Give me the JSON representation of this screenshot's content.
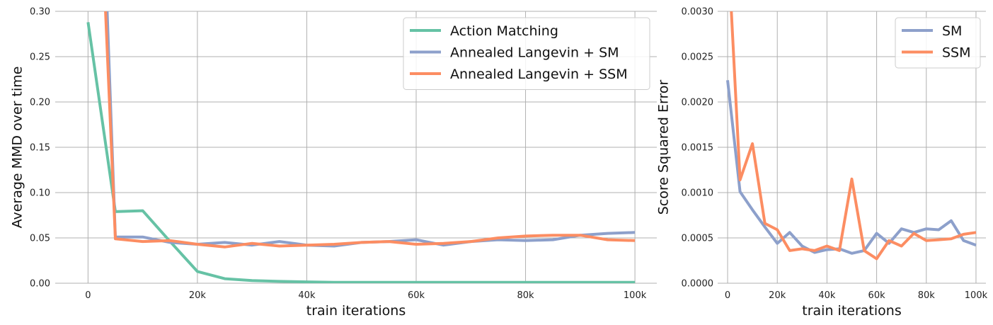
{
  "chart_data": [
    {
      "type": "line",
      "xlabel": "train iterations",
      "ylabel": "Average MMD over time",
      "xlim": [
        -6000,
        104000
      ],
      "ylim": [
        0,
        0.3
      ],
      "xticks": [
        0,
        20000,
        40000,
        60000,
        80000,
        100000
      ],
      "xtick_labels": [
        "0",
        "20k",
        "40k",
        "60k",
        "80k",
        "100k"
      ],
      "yticks": [
        0,
        0.05,
        0.1,
        0.15,
        0.2,
        0.25,
        0.3
      ],
      "ytick_labels": [
        "0.00",
        "0.05",
        "0.10",
        "0.15",
        "0.20",
        "0.25",
        "0.30"
      ],
      "grid": true,
      "legend_position": "top-right",
      "series": [
        {
          "name": "Action Matching",
          "color": "#66c2a5",
          "x": [
            0,
            5000,
            10000,
            15000,
            20000,
            25000,
            30000,
            35000,
            40000,
            45000,
            50000,
            55000,
            60000,
            65000,
            70000,
            75000,
            80000,
            85000,
            90000,
            95000,
            100000
          ],
          "y": [
            0.288,
            0.079,
            0.08,
            0.046,
            0.013,
            0.005,
            0.003,
            0.002,
            0.0015,
            0.001,
            0.001,
            0.001,
            0.001,
            0.001,
            0.001,
            0.001,
            0.001,
            0.001,
            0.001,
            0.001,
            0.001
          ]
        },
        {
          "name": "Annealed Langevin + SM",
          "color": "#8da0cb",
          "x": [
            3500,
            5000,
            10000,
            15000,
            20000,
            25000,
            30000,
            35000,
            40000,
            45000,
            50000,
            55000,
            60000,
            65000,
            70000,
            75000,
            80000,
            85000,
            90000,
            95000,
            100000
          ],
          "y": [
            0.3,
            0.051,
            0.051,
            0.045,
            0.043,
            0.045,
            0.042,
            0.046,
            0.042,
            0.041,
            0.045,
            0.046,
            0.048,
            0.042,
            0.046,
            0.048,
            0.047,
            0.048,
            0.053,
            0.055,
            0.056
          ]
        },
        {
          "name": "Annealed Langevin + SSM",
          "color": "#fc8d62",
          "x": [
            3200,
            5000,
            10000,
            15000,
            20000,
            25000,
            30000,
            35000,
            40000,
            45000,
            50000,
            55000,
            60000,
            65000,
            70000,
            75000,
            80000,
            85000,
            90000,
            95000,
            100000
          ],
          "y": [
            0.3,
            0.049,
            0.046,
            0.047,
            0.043,
            0.04,
            0.044,
            0.041,
            0.042,
            0.043,
            0.045,
            0.046,
            0.043,
            0.044,
            0.046,
            0.05,
            0.052,
            0.053,
            0.053,
            0.048,
            0.047
          ]
        }
      ]
    },
    {
      "type": "line",
      "xlabel": "train iterations",
      "ylabel": "Score Squared Error",
      "xlim": [
        -4000,
        104000
      ],
      "ylim": [
        0,
        0.003
      ],
      "xticks": [
        0,
        20000,
        40000,
        60000,
        80000,
        100000
      ],
      "xtick_labels": [
        "0",
        "20k",
        "40k",
        "60k",
        "80k",
        "100k"
      ],
      "yticks": [
        0,
        0.0005,
        0.001,
        0.0015,
        0.002,
        0.0025,
        0.003
      ],
      "ytick_labels": [
        "0.0000",
        "0.0005",
        "0.0010",
        "0.0015",
        "0.0020",
        "0.0025",
        "0.0030"
      ],
      "grid": true,
      "legend_position": "top-right",
      "series": [
        {
          "name": "SM",
          "color": "#8da0cb",
          "x": [
            0,
            5000,
            10000,
            15000,
            20000,
            25000,
            30000,
            35000,
            40000,
            45000,
            50000,
            55000,
            60000,
            65000,
            70000,
            75000,
            80000,
            85000,
            90000,
            95000,
            100000
          ],
          "y": [
            0.00224,
            0.00101,
            0.00081,
            0.00062,
            0.00044,
            0.00056,
            0.00041,
            0.00034,
            0.00037,
            0.00038,
            0.00033,
            0.00036,
            0.00055,
            0.00044,
            0.0006,
            0.00056,
            0.0006,
            0.00059,
            0.00069,
            0.00047,
            0.00042
          ]
        },
        {
          "name": "SSM",
          "color": "#fc8d62",
          "x": [
            1500,
            5000,
            10000,
            15000,
            20000,
            25000,
            30000,
            35000,
            40000,
            45000,
            50000,
            55000,
            60000,
            65000,
            70000,
            75000,
            80000,
            85000,
            90000,
            95000,
            100000
          ],
          "y": [
            0.003,
            0.00114,
            0.00154,
            0.00066,
            0.00059,
            0.00036,
            0.00038,
            0.00036,
            0.00041,
            0.00036,
            0.00115,
            0.00036,
            0.00027,
            0.00047,
            0.00041,
            0.00055,
            0.00047,
            0.00048,
            0.00049,
            0.00054,
            0.00056
          ]
        }
      ]
    }
  ]
}
